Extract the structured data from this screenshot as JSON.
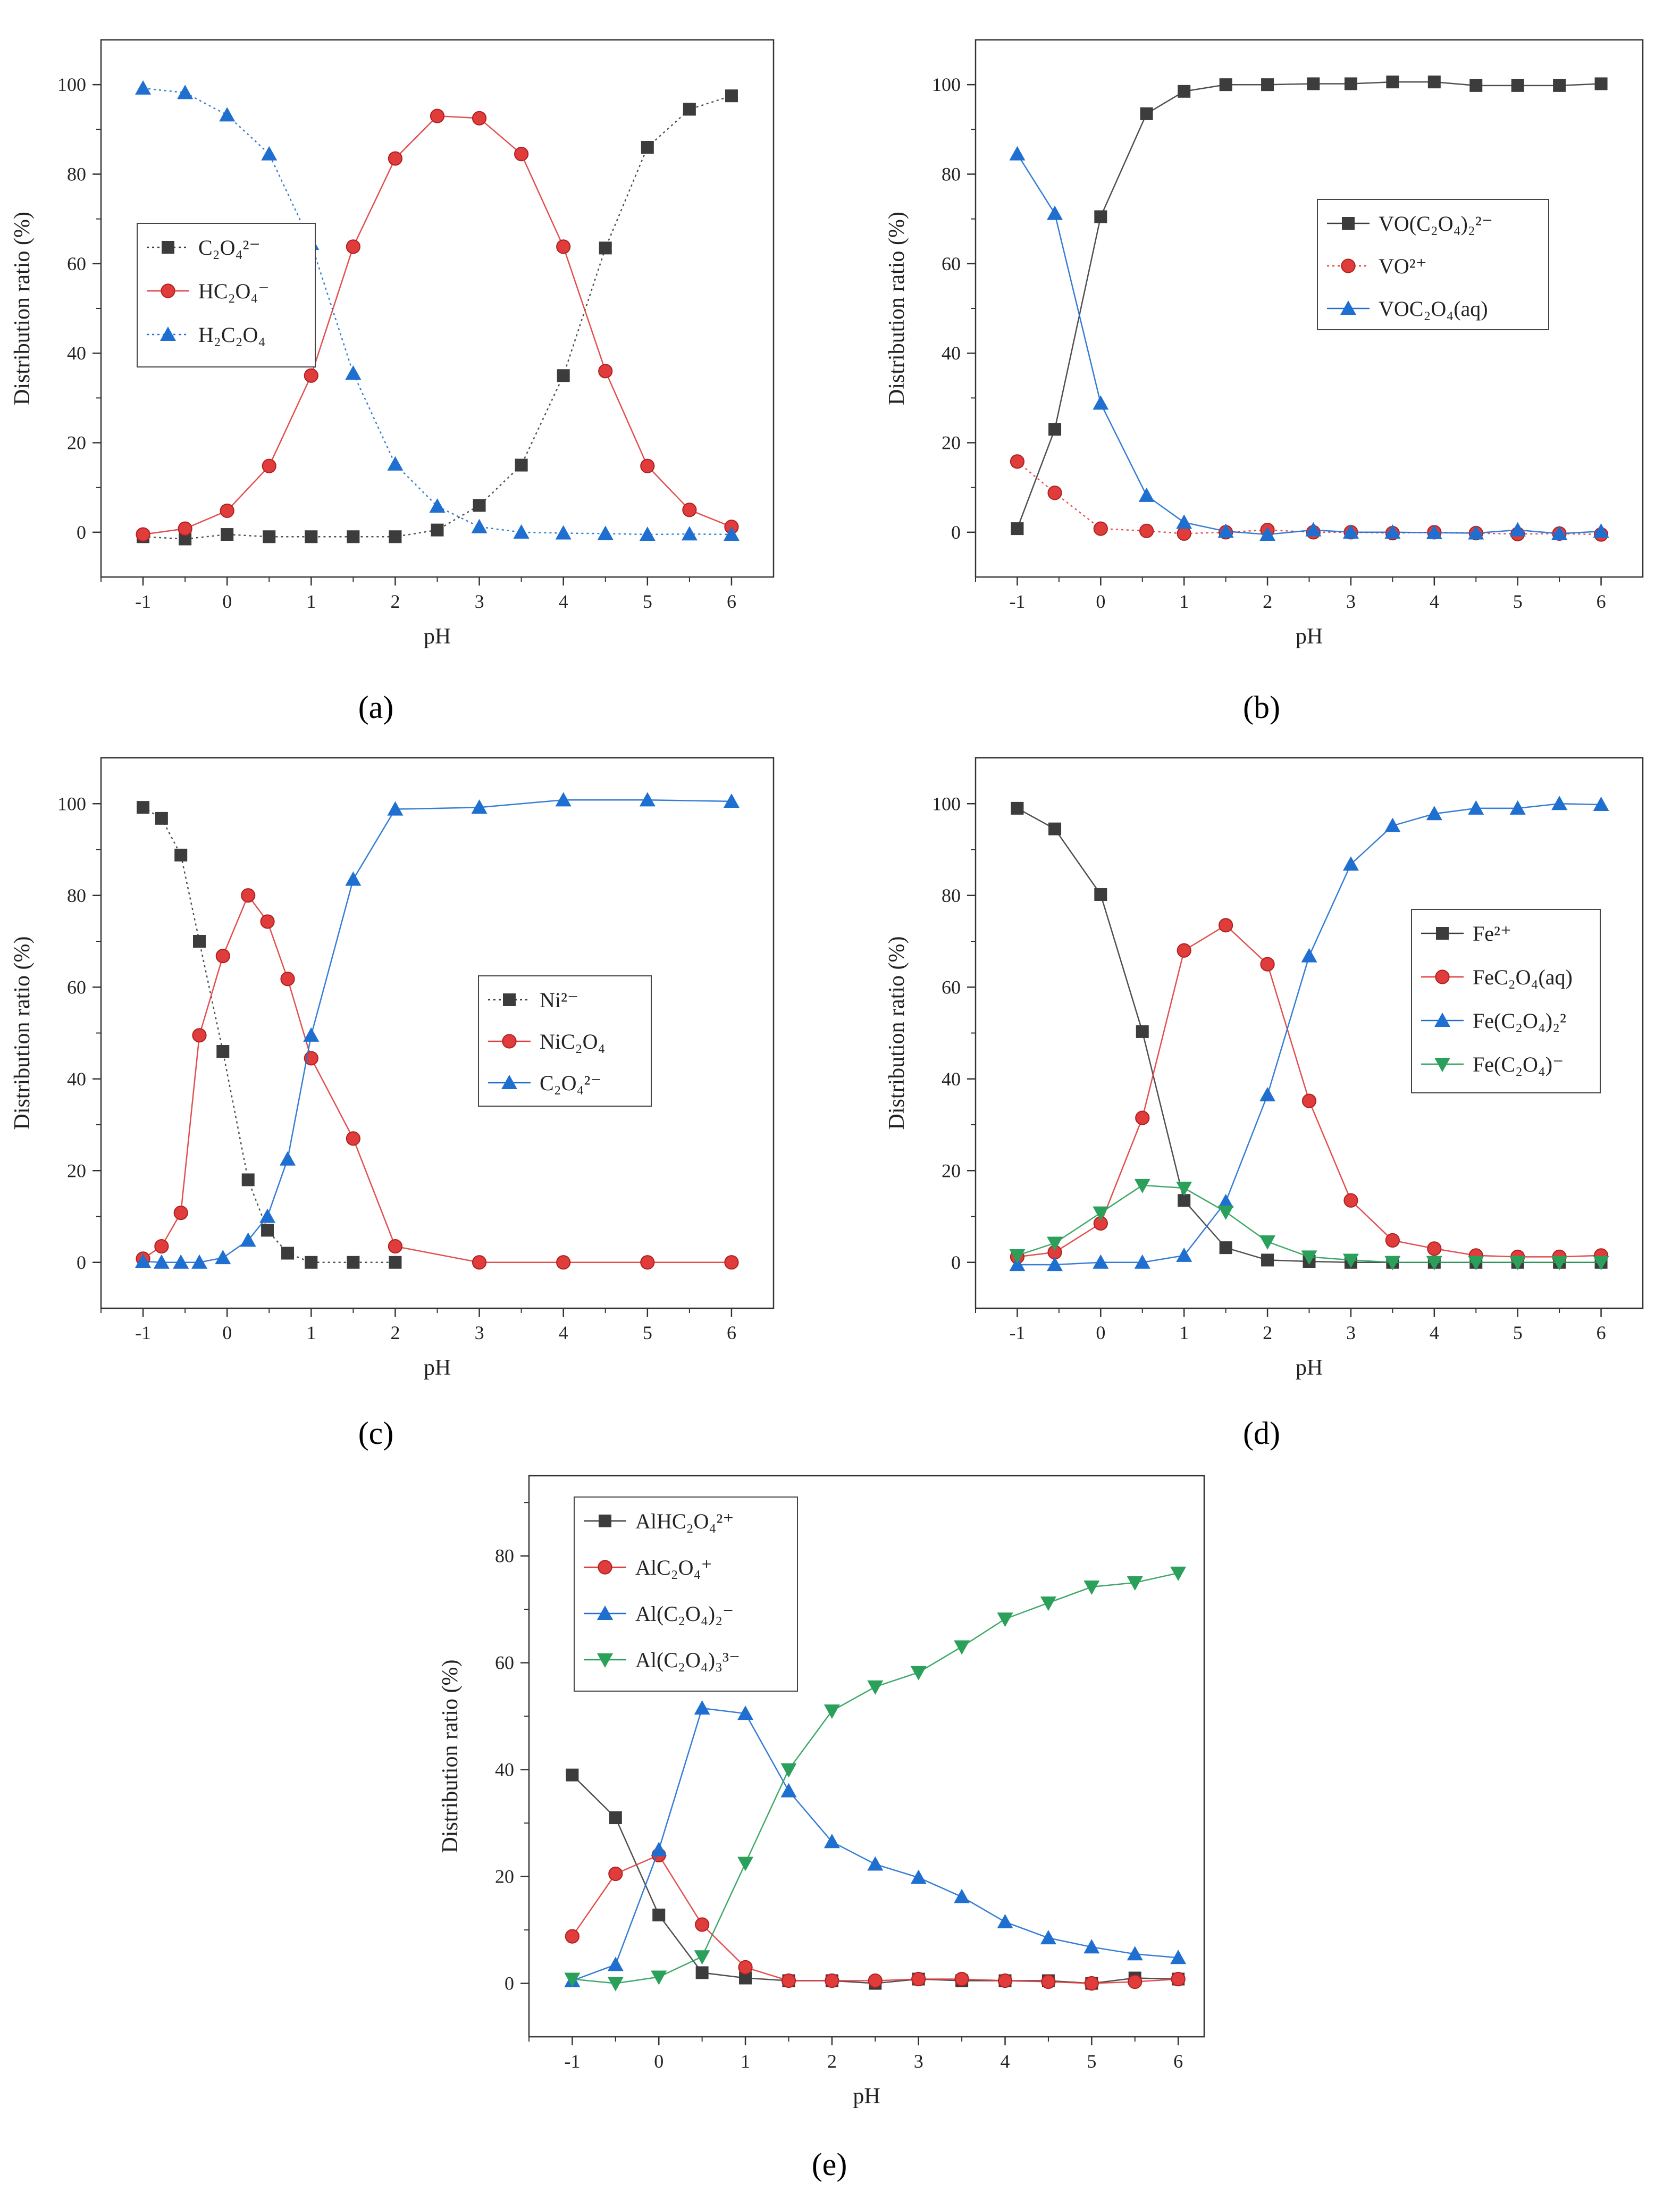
{
  "figure": {
    "panels": [
      "a",
      "b",
      "c",
      "d",
      "e"
    ]
  },
  "chart_data": [
    {
      "type": "line",
      "panel_label": "(a)",
      "xlabel": "pH",
      "ylabel": "Distribution ratio (%)",
      "xlim": [
        -1.5,
        6.5
      ],
      "ylim": [
        -10,
        110
      ],
      "xticks": [
        "-1",
        "0",
        "1",
        "2",
        "3",
        "4",
        "5",
        "6"
      ],
      "yticks": [
        "0",
        "20",
        "40",
        "60",
        "80",
        "100"
      ],
      "legend_position": "middle-left",
      "series": [
        {
          "name": "C₂O₄²⁻",
          "color": "#3c3c3c",
          "marker": "square",
          "line": false,
          "x": [
            -1,
            -0.5,
            0,
            0.5,
            1,
            1.5,
            2,
            2.5,
            3,
            3.5,
            4,
            4.5,
            5,
            5.5,
            6
          ],
          "y": [
            -1,
            -1.5,
            -0.5,
            -1,
            -1,
            -1,
            -1,
            0.5,
            6,
            15,
            35,
            63.5,
            86,
            94.5,
            97.5
          ]
        },
        {
          "name": "HC₂O₄⁻",
          "color": "#e03c3c",
          "marker": "circle",
          "line": true,
          "x": [
            -1,
            -0.5,
            0,
            0.5,
            1,
            1.5,
            2,
            2.5,
            3,
            3.5,
            4,
            4.5,
            5,
            5.5,
            6
          ],
          "y": [
            -0.5,
            0.8,
            4.8,
            14.8,
            35,
            63.8,
            83.5,
            93,
            92.5,
            84.5,
            63.8,
            36,
            14.8,
            5,
            1.2
          ]
        },
        {
          "name": "H₂C₂O₄",
          "color": "#1f6fd1",
          "marker": "triangle",
          "line": false,
          "x": [
            -1,
            -0.5,
            0,
            0.5,
            1,
            1.5,
            2,
            2.5,
            3,
            3.5,
            4,
            4.5,
            5,
            5.5,
            6
          ],
          "y": [
            99.2,
            98.2,
            93.2,
            84.5,
            64.5,
            35.5,
            15.2,
            5.8,
            1.2,
            0,
            -0.2,
            -0.3,
            -0.5,
            -0.4,
            -0.5
          ]
        }
      ]
    },
    {
      "type": "line",
      "panel_label": "(b)",
      "xlabel": "pH",
      "ylabel": "Distribution ratio (%)",
      "xlim": [
        -1.5,
        6.5
      ],
      "ylim": [
        -10,
        110
      ],
      "xticks": [
        "-1",
        "0",
        "1",
        "2",
        "3",
        "4",
        "5",
        "6"
      ],
      "yticks": [
        "0",
        "20",
        "40",
        "60",
        "80",
        "100"
      ],
      "legend_position": "upper-right",
      "series": [
        {
          "name": "VO(C₂O₄)₂²⁻",
          "color": "#3c3c3c",
          "marker": "square",
          "line": true,
          "x": [
            -1,
            -0.55,
            0,
            0.55,
            1,
            1.5,
            2,
            2.55,
            3,
            3.5,
            4,
            4.5,
            5,
            5.5,
            6
          ],
          "y": [
            0.8,
            23,
            70.5,
            93.5,
            98.5,
            100,
            100,
            100.2,
            100.2,
            100.6,
            100.6,
            99.8,
            99.8,
            99.8,
            100.2
          ]
        },
        {
          "name": "VO²⁺",
          "color": "#e03c3c",
          "marker": "circle",
          "line": false,
          "x": [
            -1,
            -0.55,
            0,
            0.55,
            1,
            1.5,
            2,
            2.55,
            3,
            3.5,
            4,
            4.5,
            5,
            5.5,
            6
          ],
          "y": [
            15.8,
            8.8,
            0.8,
            0.3,
            -0.3,
            0,
            0.5,
            0,
            0,
            -0.2,
            0,
            -0.2,
            -0.4,
            -0.3,
            -0.5
          ]
        },
        {
          "name": "VOC₂O₄(aq)",
          "color": "#1f6fd1",
          "marker": "triangle",
          "line": true,
          "x": [
            -1,
            -0.55,
            0,
            0.55,
            1,
            1.5,
            2,
            2.55,
            3,
            3.5,
            4,
            4.5,
            5,
            5.5,
            6
          ],
          "y": [
            84.5,
            71.2,
            28.8,
            8.2,
            2.2,
            0.2,
            -0.5,
            0.5,
            0,
            0,
            -0.1,
            -0.2,
            0.5,
            -0.3,
            0.2
          ]
        }
      ]
    },
    {
      "type": "line",
      "panel_label": "(c)",
      "xlabel": "pH",
      "ylabel": "Distribution ratio (%)",
      "xlim": [
        -1.5,
        6.5
      ],
      "ylim": [
        -10,
        110
      ],
      "xticks": [
        "-1",
        "0",
        "1",
        "2",
        "3",
        "4",
        "5",
        "6"
      ],
      "yticks": [
        "0",
        "20",
        "40",
        "60",
        "80",
        "100"
      ],
      "legend_position": "center-right",
      "series": [
        {
          "name": "Ni²⁻",
          "color": "#3c3c3c",
          "marker": "square",
          "line": false,
          "x": [
            -1,
            -0.78,
            -0.55,
            -0.33,
            -0.05,
            0.25,
            0.48,
            0.72,
            1,
            1.5,
            2
          ],
          "y": [
            99.2,
            96.8,
            88.8,
            70,
            46,
            18,
            7,
            2,
            0,
            0,
            0
          ]
        },
        {
          "name": "NiC₂O₄",
          "color": "#e03c3c",
          "marker": "circle",
          "line": true,
          "x": [
            -1,
            -0.78,
            -0.55,
            -0.33,
            -0.05,
            0.25,
            0.48,
            0.72,
            1,
            1.5,
            2,
            3,
            4,
            5,
            6
          ],
          "y": [
            0.8,
            3.5,
            10.8,
            49.5,
            66.8,
            80,
            74.3,
            61.8,
            44.5,
            27,
            3.5,
            0,
            0,
            0,
            0
          ]
        },
        {
          "name": "C₂O₄²⁻",
          "color": "#1f6fd1",
          "marker": "triangle",
          "line": true,
          "x": [
            -1,
            -0.78,
            -0.55,
            -0.33,
            -0.05,
            0.25,
            0.48,
            0.72,
            1,
            1.5,
            2,
            3,
            4,
            5,
            6
          ],
          "y": [
            0.2,
            0,
            0,
            0,
            1,
            4.8,
            10,
            22.5,
            49.5,
            83.5,
            98.8,
            99.2,
            100.8,
            100.8,
            100.5
          ]
        }
      ]
    },
    {
      "type": "line",
      "panel_label": "(d)",
      "xlabel": "pH",
      "ylabel": "Distribution ratio (%)",
      "xlim": [
        -1.5,
        6.5
      ],
      "ylim": [
        -10,
        110
      ],
      "xticks": [
        "-1",
        "0",
        "1",
        "2",
        "3",
        "4",
        "5",
        "6"
      ],
      "yticks": [
        "0",
        "20",
        "40",
        "60",
        "80",
        "100"
      ],
      "legend_position": "upper-right",
      "series": [
        {
          "name": "Fe²⁺",
          "color": "#3c3c3c",
          "marker": "square",
          "line": true,
          "x": [
            -1,
            -0.55,
            0,
            0.5,
            1,
            1.5,
            2,
            2.5,
            3,
            3.5,
            4,
            4.5,
            5,
            5.5,
            6
          ],
          "y": [
            99,
            94.5,
            80.2,
            50.3,
            13.5,
            3.2,
            0.5,
            0.2,
            0,
            0,
            0,
            0,
            0,
            0,
            0
          ]
        },
        {
          "name": "FeC₂O₄(aq)",
          "color": "#e03c3c",
          "marker": "circle",
          "line": true,
          "x": [
            -1,
            -0.55,
            0,
            0.5,
            1,
            1.5,
            2,
            2.5,
            3,
            3.5,
            4,
            4.5,
            5,
            5.5,
            6
          ],
          "y": [
            1.2,
            2.2,
            8.5,
            31.5,
            68,
            73.5,
            65,
            35.2,
            13.5,
            4.8,
            3,
            1.5,
            1.2,
            1.2,
            1.5
          ]
        },
        {
          "name": "Fe(C₂O₄)₂²",
          "color": "#1f6fd1",
          "marker": "triangle",
          "line": true,
          "x": [
            -1,
            -0.55,
            0,
            0.5,
            1,
            1.5,
            2,
            2.5,
            3,
            3.5,
            4,
            4.5,
            5,
            5.5,
            6
          ],
          "y": [
            -0.5,
            -0.5,
            0,
            0,
            1.5,
            13.2,
            36.5,
            66.8,
            86.8,
            95.2,
            97.8,
            99,
            99,
            100,
            99.8
          ]
        },
        {
          "name": "Fe(C₂O₄)⁻",
          "color": "#2aa05a",
          "marker": "triangle-down",
          "line": true,
          "x": [
            -1,
            -0.55,
            0,
            0.5,
            1,
            1.5,
            2,
            2.5,
            3,
            3.5,
            4,
            4.5,
            5,
            5.5,
            6
          ],
          "y": [
            1.5,
            4.2,
            10.8,
            16.8,
            16.2,
            11,
            4.5,
            1.2,
            0.5,
            0,
            0,
            0,
            0,
            0,
            0
          ]
        }
      ]
    },
    {
      "type": "line",
      "panel_label": "(e)",
      "xlabel": "pH",
      "ylabel": "Distribution ratio (%)",
      "xlim": [
        -1.5,
        6.3
      ],
      "ylim": [
        -10,
        95
      ],
      "xticks": [
        "-1",
        "0",
        "1",
        "2",
        "3",
        "4",
        "5",
        "6"
      ],
      "yticks": [
        "0",
        "20",
        "40",
        "60",
        "80"
      ],
      "legend_position": "upper-left",
      "series": [
        {
          "name": "AlHC₂O₄²⁺",
          "color": "#3c3c3c",
          "marker": "square",
          "line": true,
          "x": [
            -1,
            -0.5,
            0,
            0.5,
            1,
            1.5,
            2,
            2.5,
            3,
            3.5,
            4,
            4.5,
            5,
            5.5,
            6
          ],
          "y": [
            39,
            31,
            12.8,
            2,
            1,
            0.5,
            0.5,
            0,
            0.8,
            0.5,
            0.5,
            0.5,
            0,
            1,
            0.8
          ]
        },
        {
          "name": "AlC₂O₄⁺",
          "color": "#e03c3c",
          "marker": "circle",
          "line": true,
          "x": [
            -1,
            -0.5,
            0,
            0.5,
            1,
            1.5,
            2,
            2.5,
            3,
            3.5,
            4,
            4.5,
            5,
            5.5,
            6
          ],
          "y": [
            8.8,
            20.5,
            24,
            11,
            3,
            0.5,
            0.5,
            0.5,
            0.8,
            0.8,
            0.5,
            0.3,
            0,
            0.3,
            0.8
          ]
        },
        {
          "name": "Al(C₂O₄)₂⁻",
          "color": "#1f6fd1",
          "marker": "triangle",
          "line": true,
          "x": [
            -1,
            -0.5,
            0,
            0.5,
            1,
            1.5,
            2,
            2.5,
            3,
            3.5,
            4,
            4.5,
            5,
            5.5,
            6
          ],
          "y": [
            0.5,
            3.5,
            25,
            51.5,
            50.5,
            36,
            26.5,
            22.3,
            19.8,
            16.2,
            11.5,
            8.5,
            6.8,
            5.5,
            4.8
          ]
        },
        {
          "name": "Al(C₂O₄)₃³⁻",
          "color": "#2aa05a",
          "marker": "triangle-down",
          "line": true,
          "x": [
            -1,
            -0.5,
            0,
            0.5,
            1,
            1.5,
            2,
            2.5,
            3,
            3.5,
            4,
            4.5,
            5,
            5.5,
            6
          ],
          "y": [
            0.8,
            0,
            1.2,
            5,
            22.5,
            40,
            51,
            55.5,
            58.2,
            63,
            68.2,
            71.2,
            74.2,
            75,
            76.8
          ]
        }
      ]
    }
  ]
}
